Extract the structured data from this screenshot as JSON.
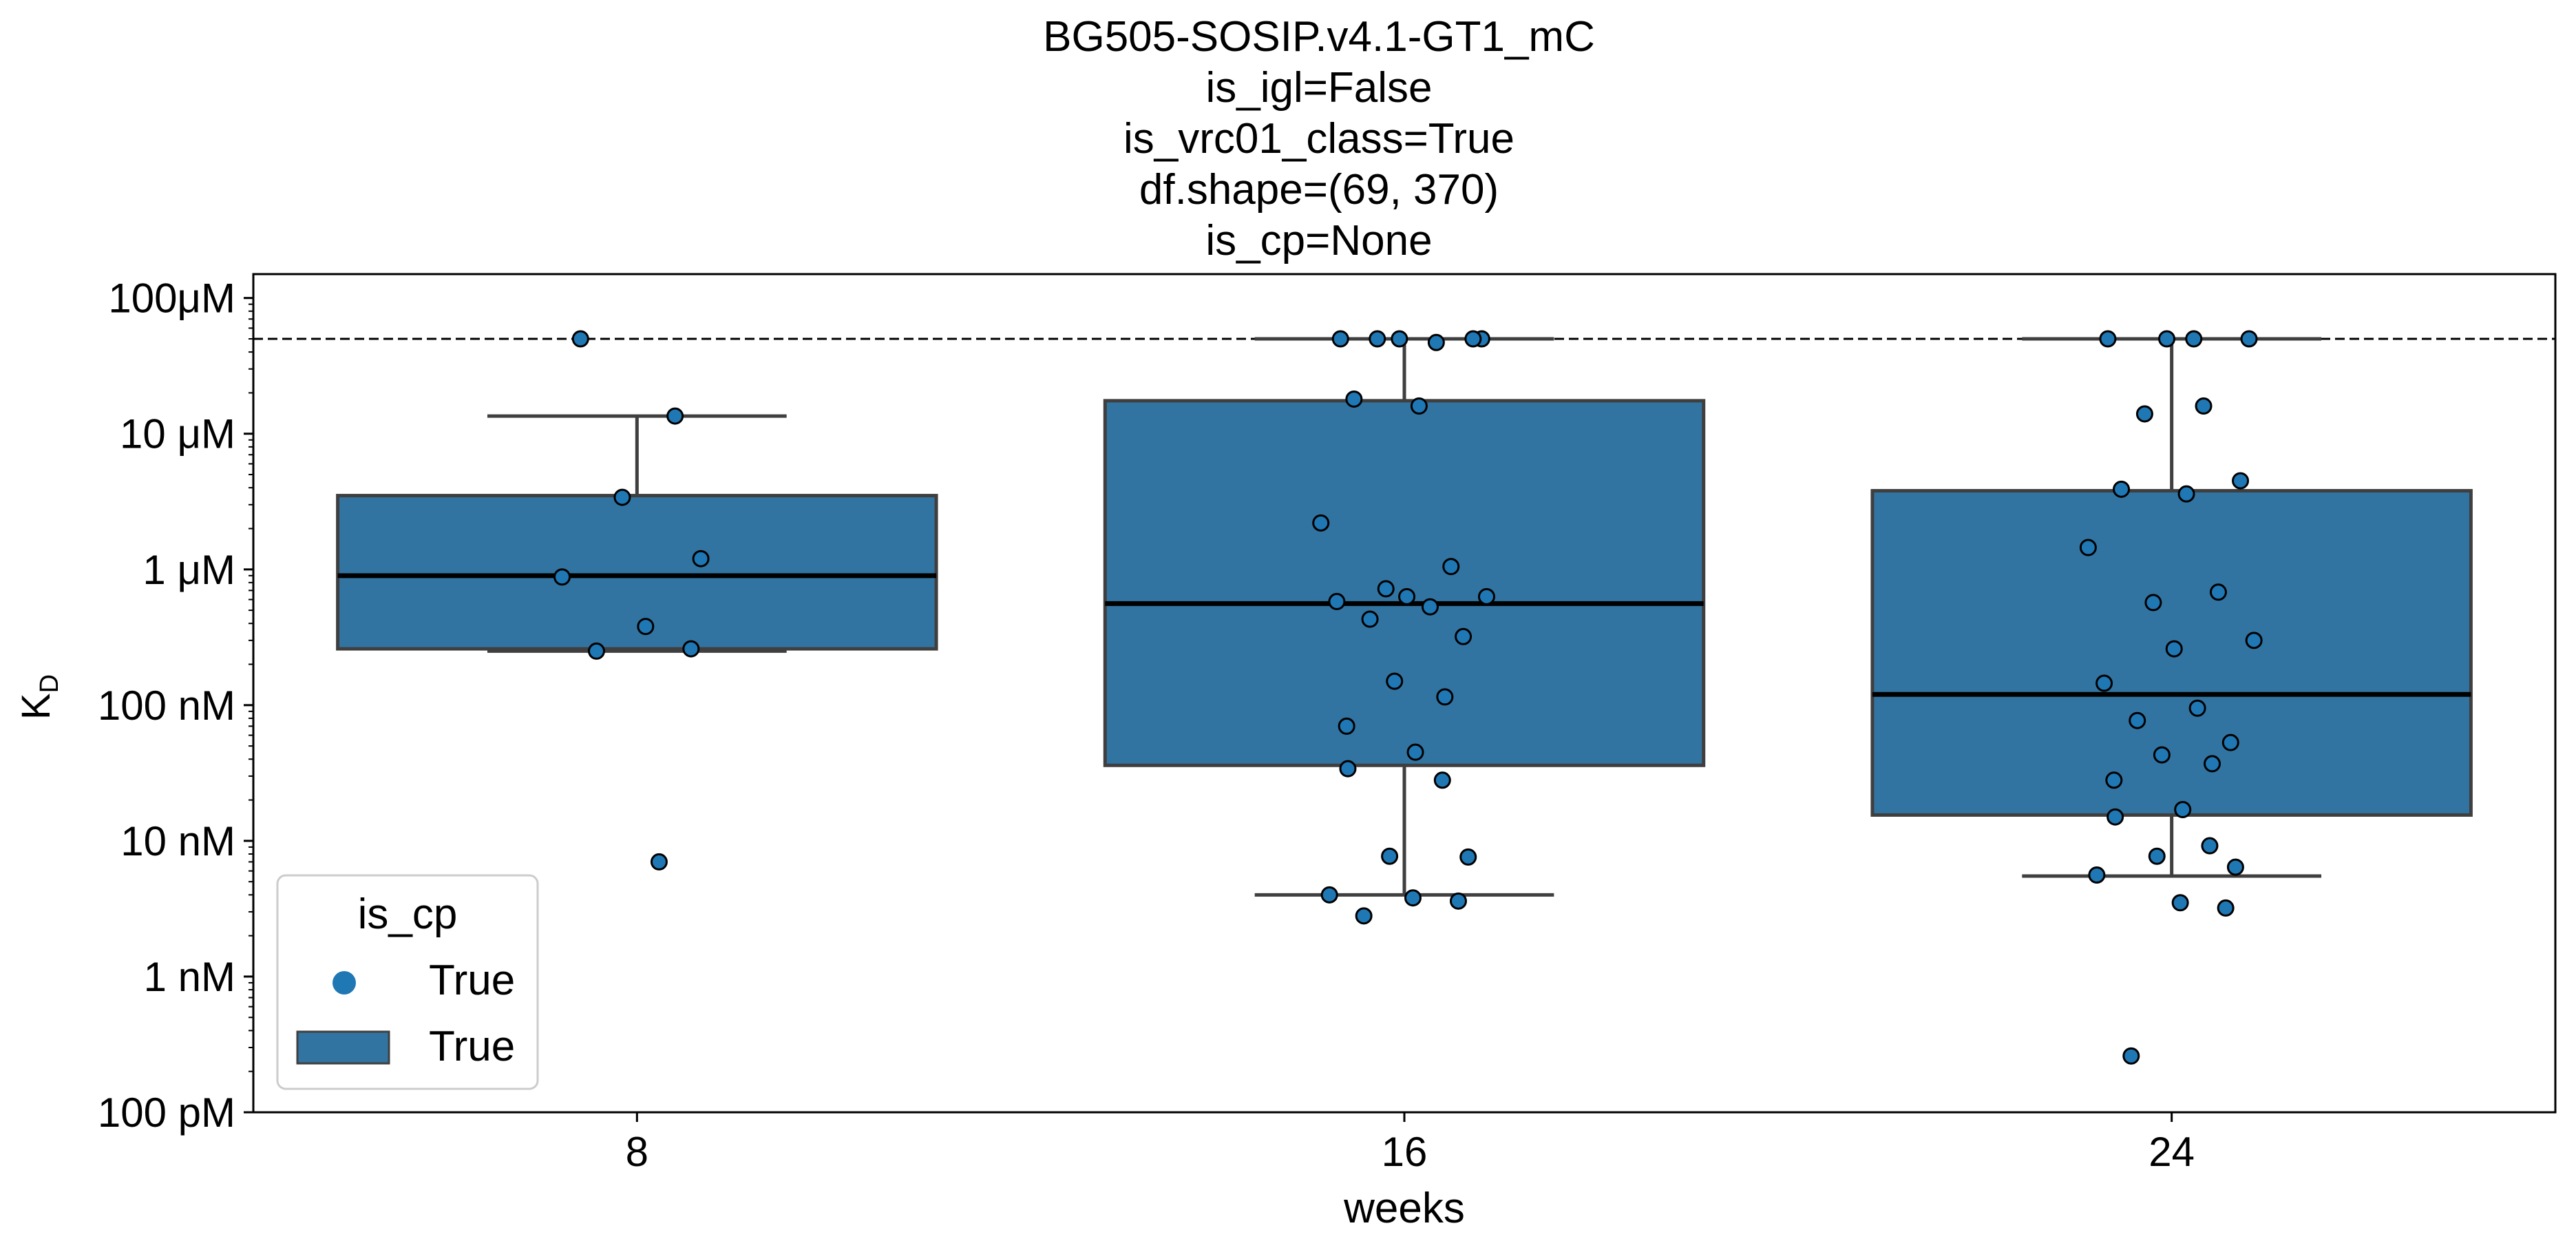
{
  "chart_data": {
    "type": "box",
    "title_lines": [
      "BG505-SOSIP.v4.1-GT1_mC",
      "is_igl=False",
      "is_vrc01_class=True",
      "df.shape=(69, 370)",
      "is_cp=None"
    ],
    "xlabel": "weeks",
    "ylabel": "K",
    "ylabel_sub": "D",
    "yscale": "log",
    "ylim": [
      1e-10,
      0.00015
    ],
    "yticks": [
      {
        "value": 1e-10,
        "label": "100 pM"
      },
      {
        "value": 1e-09,
        "label": "1 nM"
      },
      {
        "value": 1e-08,
        "label": "10 nM"
      },
      {
        "value": 1e-07,
        "label": "100 nM"
      },
      {
        "value": 1e-06,
        "label": "1 μM"
      },
      {
        "value": 1e-05,
        "label": "10 μM"
      },
      {
        "value": 0.0001,
        "label": "100μM"
      }
    ],
    "reference_line": {
      "value": 5e-05,
      "style": "dashed"
    },
    "categories": [
      "8",
      "16",
      "24"
    ],
    "boxes": [
      {
        "category": "8",
        "whisker_low": 2.5e-07,
        "q1": 2.6e-07,
        "median": 9e-07,
        "q3": 3.5e-06,
        "whisker_high": 1.35e-05
      },
      {
        "category": "16",
        "whisker_low": 4e-09,
        "q1": 3.6e-08,
        "median": 5.6e-07,
        "q3": 1.75e-05,
        "whisker_high": 5e-05
      },
      {
        "category": "24",
        "whisker_low": 5.5e-09,
        "q1": 1.55e-08,
        "median": 1.2e-07,
        "q3": 3.8e-06,
        "whisker_high": 5e-05
      }
    ],
    "points": [
      {
        "category": "8",
        "values": [
          5e-05,
          1.35e-05,
          3.4e-06,
          1.2e-06,
          8.8e-07,
          3.8e-07,
          2.6e-07,
          2.5e-07,
          7e-09
        ]
      },
      {
        "category": "16",
        "values": [
          5e-05,
          5e-05,
          5e-05,
          4.7e-05,
          5e-05,
          5e-05,
          1.8e-05,
          1.6e-05,
          2.2e-06,
          1.05e-06,
          7.2e-07,
          6.3e-07,
          6.3e-07,
          5.8e-07,
          5.3e-07,
          4.3e-07,
          3.2e-07,
          1.5e-07,
          1.15e-07,
          7e-08,
          4.5e-08,
          3.4e-08,
          2.8e-08,
          7.7e-09,
          7.6e-09,
          4e-09,
          3.8e-09,
          3.6e-09,
          2.8e-09
        ]
      },
      {
        "category": "24",
        "values": [
          5e-05,
          5e-05,
          5e-05,
          5e-05,
          1.6e-05,
          1.4e-05,
          4.5e-06,
          3.9e-06,
          3.6e-06,
          1.45e-06,
          6.8e-07,
          5.7e-07,
          3e-07,
          2.6e-07,
          1.45e-07,
          9.5e-08,
          7.7e-08,
          5.3e-08,
          4.3e-08,
          3.7e-08,
          2.8e-08,
          1.7e-08,
          1.5e-08,
          9.2e-09,
          7.7e-09,
          6.4e-09,
          5.6e-09,
          3.5e-09,
          3.2e-09,
          2.6e-10
        ]
      }
    ],
    "series": [
      {
        "name": "True",
        "color": "#1f77b4",
        "box_color": "#3274a1"
      }
    ],
    "legend": {
      "title": "is_cp",
      "placement": "lower-left",
      "entries": [
        {
          "label": "True",
          "marker": "point",
          "color": "#1f77b4"
        },
        {
          "label": "True",
          "marker": "box",
          "color": "#3274a1"
        }
      ]
    },
    "grid": false
  }
}
